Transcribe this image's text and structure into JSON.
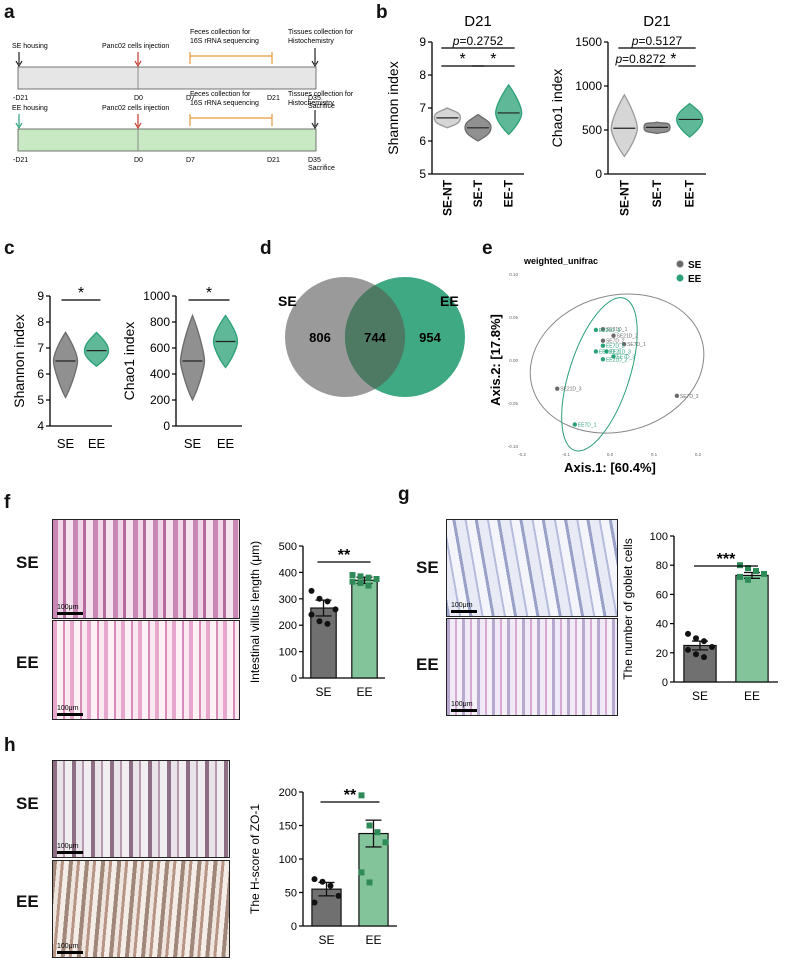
{
  "panel_labels": {
    "a": "a",
    "b": "b",
    "c": "c",
    "d": "d",
    "e": "e",
    "f": "f",
    "g": "g",
    "h": "h"
  },
  "panel_a": {
    "rows": [
      {
        "housing": "SE housing",
        "start": "-D21",
        "injection": "Panc02 cells injection",
        "d0": "D0",
        "d7": "D7",
        "d21": "D21",
        "feces_line1": "Feces collection for",
        "feces_line2": "16S  rRNA sequencing",
        "tissue_line1": "Tissues collection for",
        "tissue_line2": "Histochemistry",
        "d35": "D35",
        "sacrifice": "Sacrifice",
        "fill": "#e6e6e6",
        "arrow": "#222222"
      },
      {
        "housing": "EE housing",
        "start": "-D21",
        "injection": "Panc02 cells injection",
        "d0": "D0",
        "d7": "D7",
        "d21": "D21",
        "feces_line1": "Feces collection for",
        "feces_line2": "16S  rRNA sequencing",
        "tissue_line1": "Tissues collection for",
        "tissue_line2": "Histochemistry",
        "d35": "D35",
        "sacrifice": "Sacrifice",
        "fill": "#c9e8c4",
        "arrow": "#2aa076"
      }
    ]
  },
  "colors": {
    "se": "#6b6b6b",
    "ee": "#2aa076",
    "se_nt": "#c8c8c8",
    "se_bar": "#707070",
    "ee_bar": "#84c49b",
    "injection": "#c0392b",
    "feces": "#e59a3d"
  },
  "chart_data": [
    {
      "id": "b1",
      "type": "violin",
      "title": "D21",
      "ylabel": "Shannon index",
      "ylim": [
        5,
        9
      ],
      "yticks": [
        "5",
        "6",
        "7",
        "8",
        "9"
      ],
      "categories": [
        "SE-NT",
        "SE-T",
        "EE-T"
      ],
      "medians": [
        6.7,
        6.4,
        6.85
      ],
      "ranges": [
        [
          6.4,
          7.0
        ],
        [
          6.0,
          6.8
        ],
        [
          6.2,
          7.7
        ]
      ],
      "annotations": [
        {
          "text": "p=0.2752",
          "p_prefix": "p",
          "p_value": "=0.2752",
          "from": 0,
          "to": 2
        },
        {
          "text": "*",
          "from": 0,
          "to": 1
        },
        {
          "text": "*",
          "from": 1,
          "to": 2
        }
      ]
    },
    {
      "id": "b2",
      "type": "violin",
      "title": "D21",
      "ylabel": "Chao1 index",
      "ylim": [
        0,
        1500
      ],
      "yticks": [
        "0",
        "500",
        "1000",
        "1500"
      ],
      "categories": [
        "SE-NT",
        "SE-T",
        "EE-T"
      ],
      "medians": [
        520,
        530,
        620
      ],
      "ranges": [
        [
          200,
          900
        ],
        [
          460,
          590
        ],
        [
          420,
          800
        ]
      ],
      "annotations": [
        {
          "text": "p=0.5127",
          "p_prefix": "p",
          "p_value": "=0.5127",
          "from": 0,
          "to": 2
        },
        {
          "text": "p=0.8272",
          "p_prefix": "p",
          "p_value": "=0.8272",
          "from": 0,
          "to": 1
        },
        {
          "text": "*",
          "from": 1,
          "to": 2
        }
      ]
    },
    {
      "id": "c1",
      "type": "violin",
      "ylabel": "Shannon index",
      "ylim": [
        4,
        9
      ],
      "yticks": [
        "4",
        "5",
        "6",
        "7",
        "8",
        "9"
      ],
      "categories": [
        "SE",
        "EE"
      ],
      "medians": [
        6.5,
        6.9
      ],
      "ranges": [
        [
          5.1,
          7.6
        ],
        [
          6.3,
          7.6
        ]
      ],
      "annotations": [
        {
          "text": "*",
          "from": 0,
          "to": 1
        }
      ]
    },
    {
      "id": "c2",
      "type": "violin",
      "ylabel": "Chao1 index",
      "ylim": [
        0,
        1000
      ],
      "yticks": [
        "0",
        "200",
        "400",
        "600",
        "800",
        "1000"
      ],
      "categories": [
        "SE",
        "EE"
      ],
      "medians": [
        500,
        650
      ],
      "ranges": [
        [
          200,
          850
        ],
        [
          450,
          850
        ]
      ],
      "annotations": [
        {
          "text": "*",
          "from": 0,
          "to": 1
        }
      ]
    },
    {
      "id": "d",
      "type": "venn",
      "sets": [
        {
          "name": "SE",
          "only": "806"
        },
        {
          "name": "EE",
          "only": "954"
        }
      ],
      "overlap": "744"
    },
    {
      "id": "e",
      "type": "scatter",
      "title": "weighted_unifrac",
      "xlabel": "Axis.1: [60.4%]",
      "ylabel": "Axis.2: [17.8%]",
      "xlim": [
        -0.25,
        0.25
      ],
      "ylim": [
        -0.12,
        0.12
      ],
      "xticks": [
        "-0.2",
        "-0.1",
        "0.0",
        "0.1",
        "0.2"
      ],
      "yticks": [
        "-0.10",
        "-0.05",
        "0.00",
        "0.05",
        "0.10"
      ],
      "legend": [
        "SE",
        "EE"
      ],
      "points": [
        {
          "label": "SE21D_1",
          "x": -0.02,
          "y": 0.043,
          "group": 0
        },
        {
          "label": "SE21D_2",
          "x": 0.01,
          "y": 0.034,
          "group": 0
        },
        {
          "label": "SE7D_2",
          "x": -0.02,
          "y": 0.027,
          "group": 0
        },
        {
          "label": "SE7D_1",
          "x": 0.04,
          "y": 0.022,
          "group": 0
        },
        {
          "label": "SE21D_3",
          "x": -0.15,
          "y": -0.04,
          "group": 0
        },
        {
          "label": "SE7D_3",
          "x": 0.19,
          "y": -0.05,
          "group": 0
        },
        {
          "label": "EE21D_3",
          "x": -0.04,
          "y": 0.042,
          "group": 1
        },
        {
          "label": "EE7D_2",
          "x": -0.02,
          "y": 0.02,
          "group": 1
        },
        {
          "label": "EE21D_1",
          "x": -0.04,
          "y": 0.012,
          "group": 1
        },
        {
          "label": "EE21D_3",
          "x": -0.01,
          "y": 0.012,
          "group": 1
        },
        {
          "label": "EE7D_3",
          "x": 0.01,
          "y": 0.005,
          "group": 1
        },
        {
          "label": "EE21D_2",
          "x": -0.02,
          "y": 0.001,
          "group": 1
        },
        {
          "label": "EE7D_1",
          "x": -0.1,
          "y": -0.09,
          "group": 1
        }
      ]
    },
    {
      "id": "f",
      "type": "bar",
      "ylabel": "Intestinal villus length (μm)",
      "ylim": [
        0,
        500
      ],
      "yticks": [
        "0",
        "100",
        "200",
        "300",
        "400",
        "500"
      ],
      "categories": [
        "SE",
        "EE"
      ],
      "values": [
        265,
        370
      ],
      "errors": [
        30,
        12
      ],
      "points": [
        [
          330,
          300,
          290,
          260,
          240,
          215,
          205
        ],
        [
          390,
          385,
          380,
          375,
          365,
          360,
          350
        ]
      ],
      "annotation": "**"
    },
    {
      "id": "g",
      "type": "bar",
      "ylabel": "The number of goblet cells",
      "ylim": [
        0,
        100
      ],
      "yticks": [
        "0",
        "20",
        "40",
        "60",
        "80",
        "100"
      ],
      "categories": [
        "SE",
        "EE"
      ],
      "values": [
        25,
        73
      ],
      "errors": [
        3,
        2
      ],
      "points": [
        [
          33,
          30,
          28,
          24,
          22,
          19,
          17
        ],
        [
          80,
          78,
          76,
          74,
          72,
          70
        ]
      ],
      "annotation": "***"
    },
    {
      "id": "h",
      "type": "bar",
      "ylabel": "The H-score of ZO-1",
      "ylim": [
        0,
        200
      ],
      "yticks": [
        "0",
        "50",
        "100",
        "150",
        "200"
      ],
      "categories": [
        "SE",
        "EE"
      ],
      "values": [
        55,
        138
      ],
      "errors": [
        10,
        20
      ],
      "points": [
        [
          70,
          66,
          60,
          45,
          35
        ],
        [
          195,
          150,
          140,
          125,
          80,
          65
        ]
      ],
      "annotation": "**"
    }
  ],
  "histology": {
    "row_labels": {
      "se": "SE",
      "ee": "EE"
    },
    "scale": "100μm"
  }
}
